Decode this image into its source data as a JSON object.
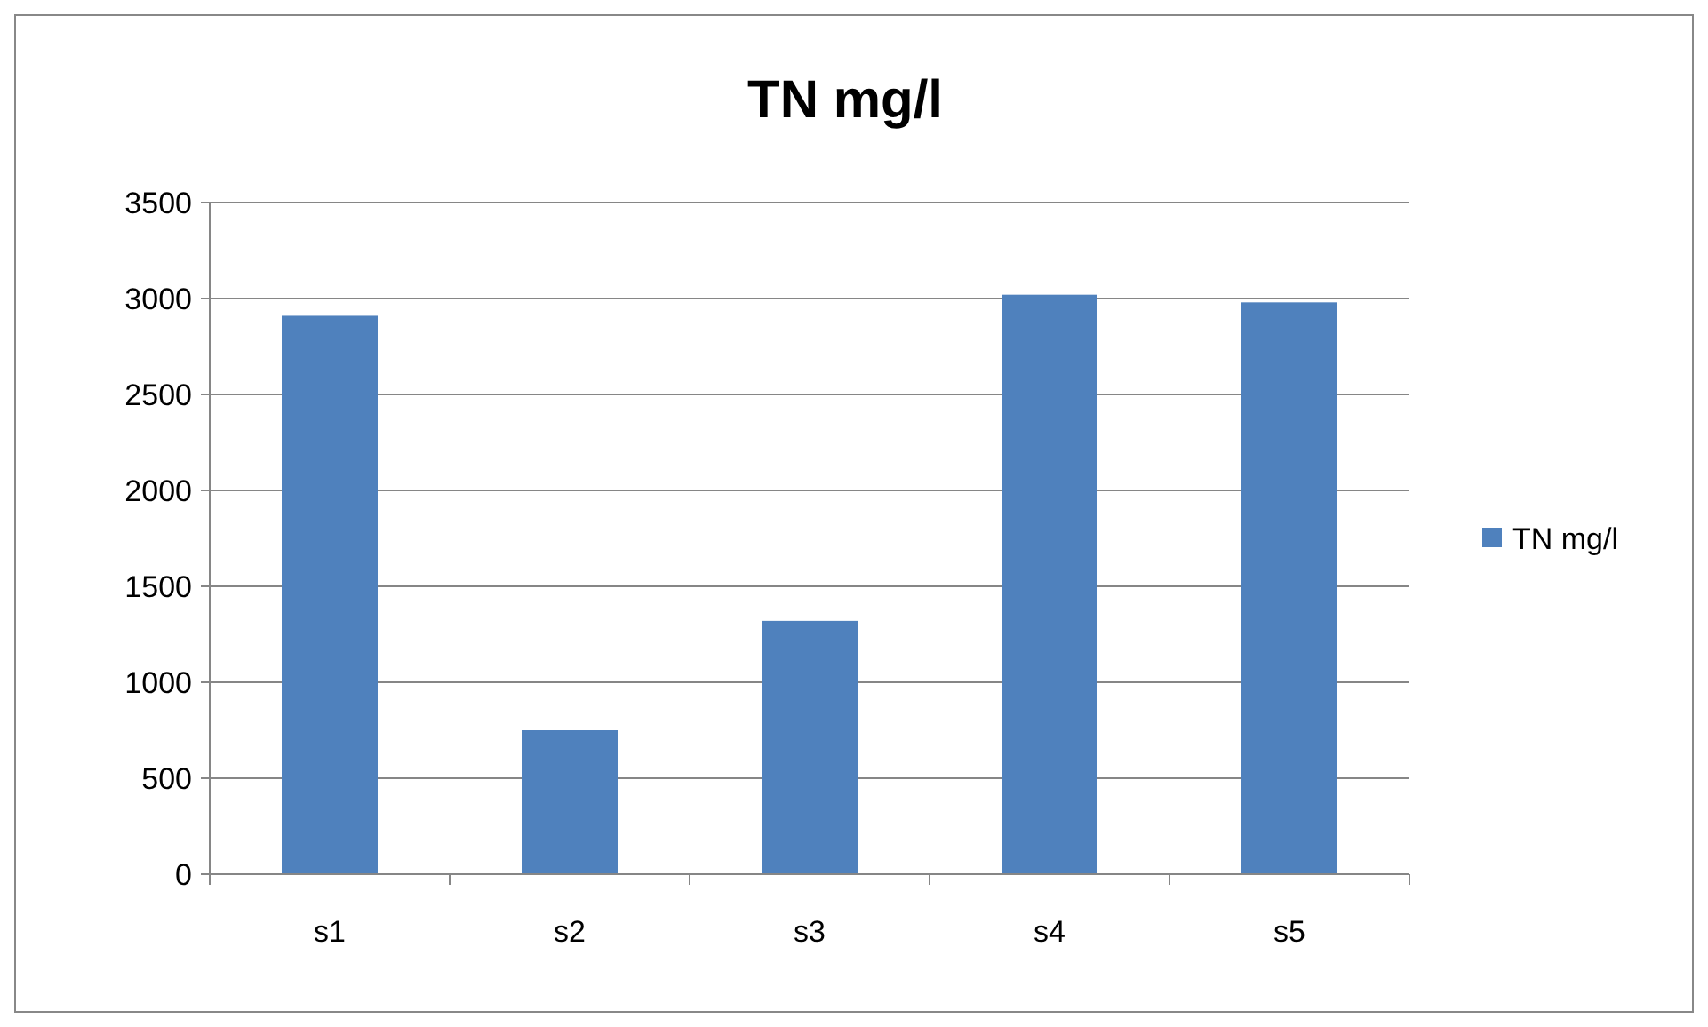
{
  "chart_data": {
    "type": "bar",
    "title": "TN mg/l",
    "categories": [
      "s1",
      "s2",
      "s3",
      "s4",
      "s5"
    ],
    "series": [
      {
        "name": "TN mg/l",
        "color": "#4f81bd",
        "values": [
          2910,
          750,
          1320,
          3020,
          2980
        ]
      }
    ],
    "ylim": [
      0,
      3500
    ],
    "yticks": [
      0,
      500,
      1000,
      1500,
      2000,
      2500,
      3000,
      3500
    ],
    "grid": "y",
    "legend": "right"
  }
}
